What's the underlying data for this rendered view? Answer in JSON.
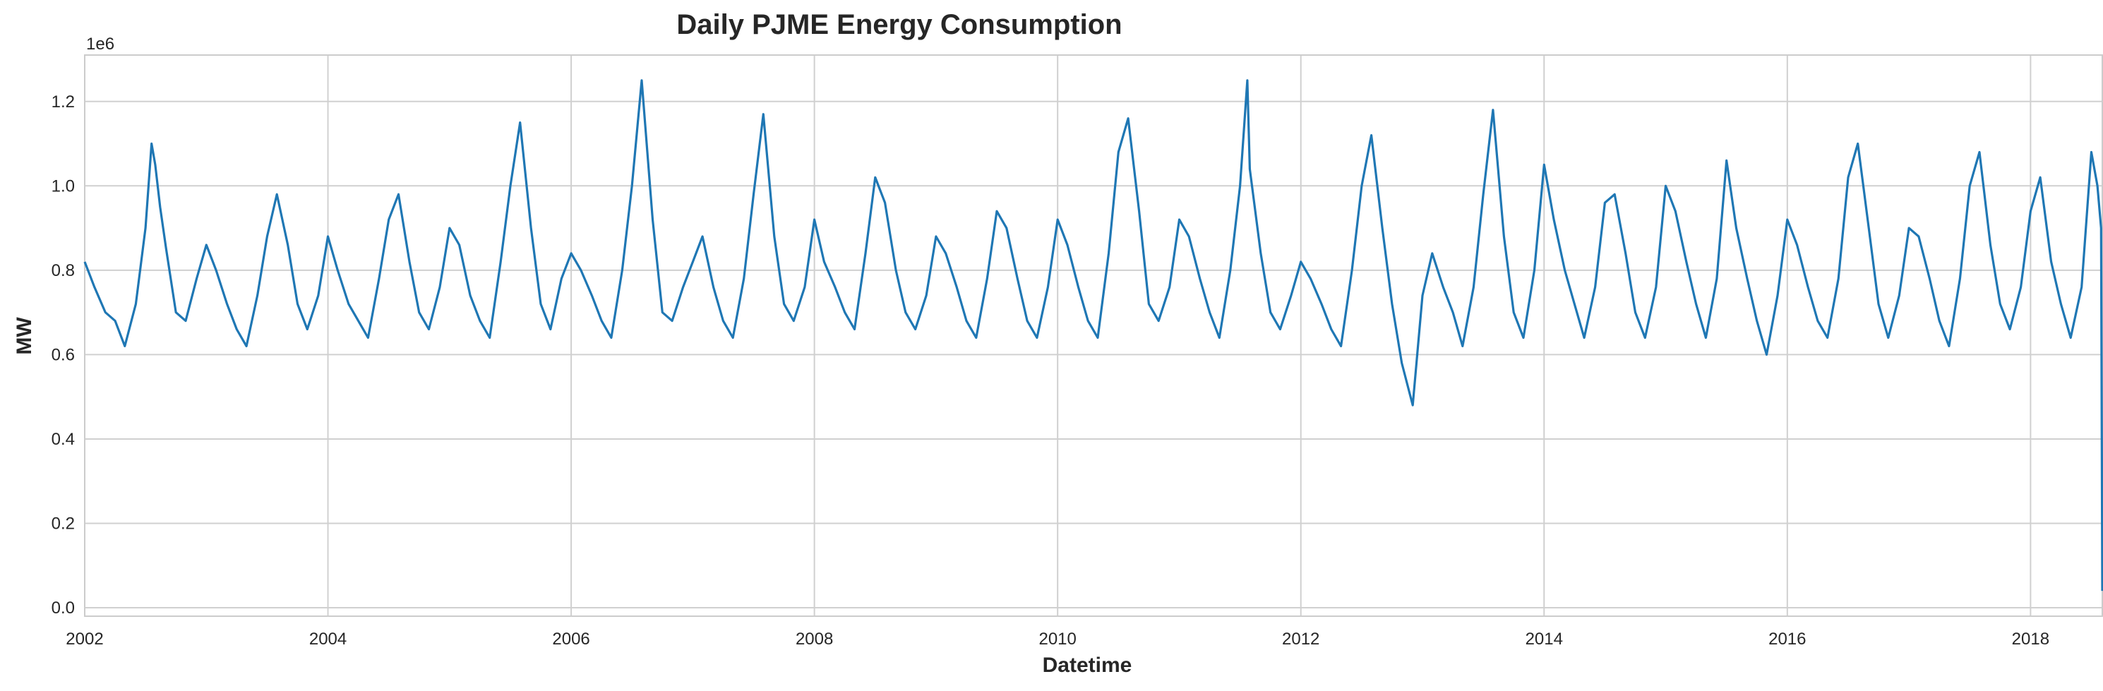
{
  "chart_data": {
    "type": "line",
    "title": "Daily PJME Energy Consumption",
    "xlabel": "Datetime",
    "ylabel": "MW",
    "y_offset_label": "1e6",
    "xlim": [
      2002.0,
      2018.59
    ],
    "ylim": [
      -0.02,
      1.31
    ],
    "y_scale_factor": 1000000,
    "x_ticks": [
      2002,
      2004,
      2006,
      2008,
      2010,
      2012,
      2014,
      2016,
      2018
    ],
    "x_tick_labels": [
      "2002",
      "2004",
      "2006",
      "2008",
      "2010",
      "2012",
      "2014",
      "2016",
      "2018"
    ],
    "y_ticks": [
      0.0,
      0.2,
      0.4,
      0.6,
      0.8,
      1.0,
      1.2
    ],
    "y_tick_labels": [
      "0.0",
      "0.2",
      "0.4",
      "0.6",
      "0.8",
      "1.0",
      "1.2"
    ],
    "grid": true,
    "line_color": "#1f77b4",
    "series": [
      {
        "x": [
          2002.0,
          2002.08,
          2002.17,
          2002.25,
          2002.33,
          2002.42,
          2002.5,
          2002.55,
          2002.58,
          2002.62,
          2002.67,
          2002.75,
          2002.83,
          2002.92,
          2003.0,
          2003.08,
          2003.17,
          2003.25,
          2003.33,
          2003.42,
          2003.5,
          2003.58,
          2003.67,
          2003.75,
          2003.83,
          2003.92,
          2004.0,
          2004.08,
          2004.17,
          2004.25,
          2004.33,
          2004.42,
          2004.5,
          2004.58,
          2004.67,
          2004.75,
          2004.83,
          2004.92,
          2005.0,
          2005.08,
          2005.17,
          2005.25,
          2005.33,
          2005.42,
          2005.5,
          2005.58,
          2005.67,
          2005.75,
          2005.83,
          2005.92,
          2006.0,
          2006.08,
          2006.17,
          2006.25,
          2006.33,
          2006.42,
          2006.5,
          2006.58,
          2006.67,
          2006.75,
          2006.83,
          2006.92,
          2007.0,
          2007.08,
          2007.17,
          2007.25,
          2007.33,
          2007.42,
          2007.5,
          2007.58,
          2007.67,
          2007.75,
          2007.83,
          2007.92,
          2008.0,
          2008.08,
          2008.17,
          2008.25,
          2008.33,
          2008.42,
          2008.5,
          2008.58,
          2008.67,
          2008.75,
          2008.83,
          2008.92,
          2009.0,
          2009.08,
          2009.17,
          2009.25,
          2009.33,
          2009.42,
          2009.5,
          2009.58,
          2009.67,
          2009.75,
          2009.83,
          2009.92,
          2010.0,
          2010.08,
          2010.17,
          2010.25,
          2010.33,
          2010.42,
          2010.5,
          2010.58,
          2010.67,
          2010.75,
          2010.83,
          2010.92,
          2011.0,
          2011.08,
          2011.17,
          2011.25,
          2011.33,
          2011.42,
          2011.5,
          2011.56,
          2011.58,
          2011.67,
          2011.75,
          2011.83,
          2011.92,
          2012.0,
          2012.08,
          2012.17,
          2012.25,
          2012.33,
          2012.42,
          2012.5,
          2012.58,
          2012.67,
          2012.75,
          2012.83,
          2012.92,
          2013.0,
          2013.08,
          2013.17,
          2013.25,
          2013.33,
          2013.42,
          2013.5,
          2013.58,
          2013.67,
          2013.75,
          2013.83,
          2013.92,
          2014.0,
          2014.08,
          2014.17,
          2014.25,
          2014.33,
          2014.42,
          2014.5,
          2014.58,
          2014.67,
          2014.75,
          2014.83,
          2014.92,
          2015.0,
          2015.08,
          2015.17,
          2015.25,
          2015.33,
          2015.42,
          2015.5,
          2015.58,
          2015.67,
          2015.75,
          2015.83,
          2015.92,
          2016.0,
          2016.08,
          2016.17,
          2016.25,
          2016.33,
          2016.42,
          2016.5,
          2016.58,
          2016.67,
          2016.75,
          2016.83,
          2016.92,
          2017.0,
          2017.08,
          2017.17,
          2017.25,
          2017.33,
          2017.42,
          2017.5,
          2017.58,
          2017.67,
          2017.75,
          2017.83,
          2017.92,
          2018.0,
          2018.08,
          2018.17,
          2018.25,
          2018.33,
          2018.42,
          2018.5,
          2018.55,
          2018.58,
          2018.59
        ],
        "values": [
          0.82,
          0.76,
          0.7,
          0.68,
          0.62,
          0.72,
          0.9,
          1.1,
          1.05,
          0.95,
          0.85,
          0.7,
          0.68,
          0.78,
          0.86,
          0.8,
          0.72,
          0.66,
          0.62,
          0.74,
          0.88,
          0.98,
          0.86,
          0.72,
          0.66,
          0.74,
          0.88,
          0.8,
          0.72,
          0.68,
          0.64,
          0.78,
          0.92,
          0.98,
          0.82,
          0.7,
          0.66,
          0.76,
          0.9,
          0.86,
          0.74,
          0.68,
          0.64,
          0.82,
          1.0,
          1.15,
          0.9,
          0.72,
          0.66,
          0.78,
          0.84,
          0.8,
          0.74,
          0.68,
          0.64,
          0.8,
          1.0,
          1.25,
          0.92,
          0.7,
          0.68,
          0.76,
          0.82,
          0.88,
          0.76,
          0.68,
          0.64,
          0.78,
          0.98,
          1.17,
          0.88,
          0.72,
          0.68,
          0.76,
          0.92,
          0.82,
          0.76,
          0.7,
          0.66,
          0.84,
          1.02,
          0.96,
          0.8,
          0.7,
          0.66,
          0.74,
          0.88,
          0.84,
          0.76,
          0.68,
          0.64,
          0.78,
          0.94,
          0.9,
          0.78,
          0.68,
          0.64,
          0.76,
          0.92,
          0.86,
          0.76,
          0.68,
          0.64,
          0.84,
          1.08,
          1.16,
          0.94,
          0.72,
          0.68,
          0.76,
          0.92,
          0.88,
          0.78,
          0.7,
          0.64,
          0.8,
          1.0,
          1.25,
          1.04,
          0.84,
          0.7,
          0.66,
          0.74,
          0.82,
          0.78,
          0.72,
          0.66,
          0.62,
          0.8,
          1.0,
          1.12,
          0.9,
          0.72,
          0.58,
          0.48,
          0.74,
          0.84,
          0.76,
          0.7,
          0.62,
          0.76,
          0.98,
          1.18,
          0.88,
          0.7,
          0.64,
          0.8,
          1.05,
          0.92,
          0.8,
          0.72,
          0.64,
          0.76,
          0.96,
          0.98,
          0.84,
          0.7,
          0.64,
          0.76,
          1.0,
          0.94,
          0.82,
          0.72,
          0.64,
          0.78,
          1.06,
          0.9,
          0.78,
          0.68,
          0.6,
          0.74,
          0.92,
          0.86,
          0.76,
          0.68,
          0.64,
          0.78,
          1.02,
          1.1,
          0.9,
          0.72,
          0.64,
          0.74,
          0.9,
          0.88,
          0.78,
          0.68,
          0.62,
          0.78,
          1.0,
          1.08,
          0.86,
          0.72,
          0.66,
          0.76,
          0.94,
          1.02,
          0.82,
          0.72,
          0.64,
          0.76,
          1.08,
          1.0,
          0.9,
          0.04
        ]
      }
    ]
  }
}
